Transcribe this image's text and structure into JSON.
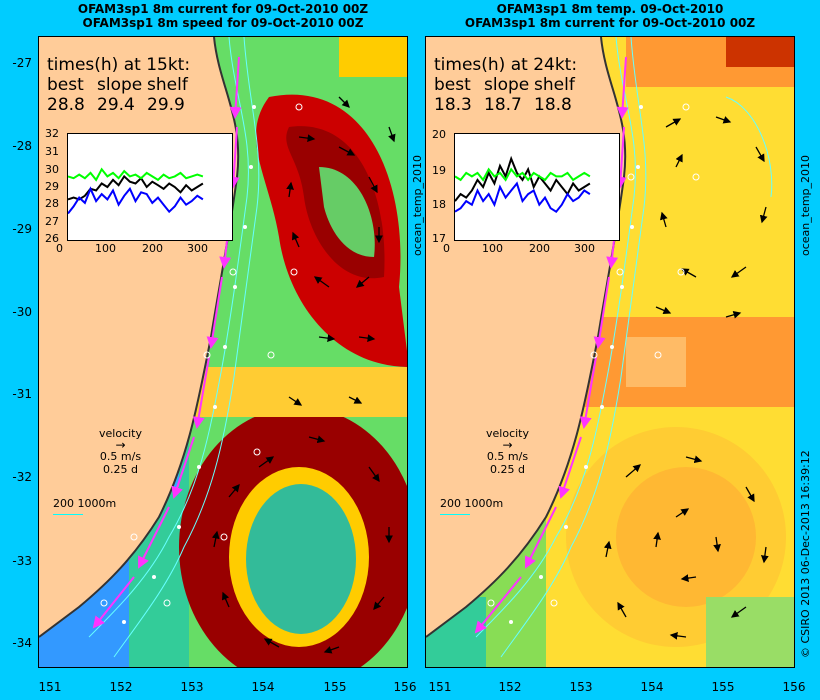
{
  "left_panel": {
    "title_line1": "OFAM3sp1 8m current for 09-Oct-2010 00Z",
    "title_line2": "OFAM3sp1 8m speed for 09-Oct-2010 00Z",
    "times_header": "times(h) at 15kt:",
    "labels": [
      "best",
      "slope",
      "shelf"
    ],
    "values": [
      "28.8",
      "29.4",
      "29.9"
    ],
    "inset_yticks": [
      "32",
      "31",
      "30",
      "29",
      "28",
      "27",
      "26"
    ],
    "inset_xticks": [
      "0",
      "100",
      "200",
      "300"
    ],
    "side_label": "ocean_temp_2010"
  },
  "right_panel": {
    "title_line1": "OFAM3sp1 8m temp. 09-Oct-2010",
    "title_line2": "OFAM3sp1 8m current for 09-Oct-2010 00Z",
    "times_header": "times(h) at 24kt:",
    "labels": [
      "best",
      "slope",
      "shelf"
    ],
    "values": [
      "18.3",
      "18.7",
      "18.8"
    ],
    "inset_yticks": [
      "20",
      "19",
      "18",
      "17"
    ],
    "inset_xticks": [
      "0",
      "100",
      "200",
      "300"
    ],
    "side_label": "ocean_temp_2010"
  },
  "velocity_legend": {
    "title": "velocity",
    "speed": "0.5 m/s",
    "time": "0.25 d"
  },
  "depth_legend": "200  1000m",
  "y_ticks": [
    "-27",
    "-28",
    "-29",
    "-30",
    "-31",
    "-32",
    "-33",
    "-34"
  ],
  "x_ticks": [
    "151",
    "152",
    "153",
    "154",
    "155",
    "156"
  ],
  "credit": "© CSIRO 2013   06-Dec-2013 16:39:12",
  "colors": {
    "background": "#00ccff",
    "land": "#ffcc99",
    "hot": "#990000",
    "track_magenta": "#ff33ff",
    "track_blue": "#0000ff",
    "track_green": "#00ff00",
    "track_black": "#000000"
  },
  "chart_data": [
    {
      "type": "line",
      "title": "",
      "ylim": [
        26,
        32
      ],
      "xlim": [
        0,
        350
      ],
      "series": [
        {
          "values": [
            28.3,
            28.4,
            28.3,
            28.5,
            28.9,
            28.8,
            29.2,
            29.0,
            29.4,
            29.1,
            29.6,
            29.3,
            29.2,
            29.5,
            29.0,
            29.3,
            29.1,
            28.9,
            29.2,
            29.0,
            28.7,
            29.1,
            28.8,
            29.0,
            29.2
          ]
        },
        {
          "values": [
            27.5,
            27.9,
            28.4,
            28.1,
            28.9,
            28.2,
            28.6,
            28.3,
            28.8,
            28.0,
            28.5,
            28.9,
            28.2,
            28.7,
            28.6,
            28.1,
            28.4,
            28.0,
            27.6,
            27.9,
            28.4,
            28.0,
            28.2,
            28.5,
            28.3
          ]
        },
        {
          "values": [
            29.6,
            29.5,
            29.7,
            29.5,
            29.8,
            29.4,
            30.0,
            29.6,
            29.8,
            29.5,
            29.9,
            29.6,
            29.7,
            29.5,
            29.8,
            29.6,
            29.4,
            29.7,
            29.5,
            29.6,
            29.8,
            29.5,
            29.6,
            29.7,
            29.6
          ]
        }
      ],
      "x": [
        0,
        12,
        24,
        36,
        48,
        60,
        72,
        84,
        96,
        108,
        120,
        132,
        144,
        156,
        168,
        180,
        192,
        204,
        216,
        228,
        240,
        252,
        264,
        276,
        288
      ]
    },
    {
      "type": "line",
      "title": "",
      "ylim": [
        17,
        20
      ],
      "xlim": [
        0,
        350
      ],
      "series": [
        {
          "values": [
            18.1,
            18.3,
            18.2,
            18.4,
            18.7,
            18.5,
            18.9,
            18.6,
            19.1,
            18.8,
            19.3,
            18.9,
            18.7,
            19.0,
            18.5,
            18.8,
            18.6,
            18.4,
            18.7,
            18.5,
            18.3,
            18.6,
            18.4,
            18.5,
            18.6
          ]
        },
        {
          "values": [
            17.8,
            17.9,
            18.1,
            18.0,
            18.4,
            18.1,
            18.3,
            18.0,
            18.5,
            18.2,
            18.4,
            18.6,
            18.1,
            18.3,
            18.4,
            18.0,
            18.2,
            17.9,
            17.8,
            18.0,
            18.3,
            18.1,
            18.2,
            18.4,
            18.3
          ]
        },
        {
          "values": [
            18.8,
            18.7,
            18.9,
            18.8,
            18.9,
            18.7,
            19.0,
            18.8,
            18.9,
            18.7,
            19.0,
            18.8,
            18.9,
            18.7,
            18.9,
            18.8,
            18.7,
            18.9,
            18.8,
            18.8,
            18.9,
            18.7,
            18.8,
            18.9,
            18.8
          ]
        }
      ],
      "x": [
        0,
        12,
        24,
        36,
        48,
        60,
        72,
        84,
        96,
        108,
        120,
        132,
        144,
        156,
        168,
        180,
        192,
        204,
        216,
        228,
        240,
        252,
        264,
        276,
        288
      ]
    }
  ]
}
